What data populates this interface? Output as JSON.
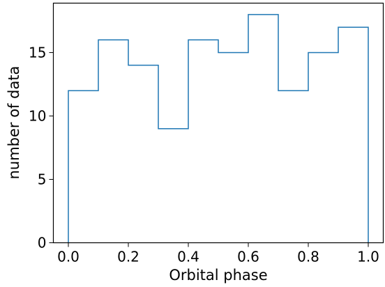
{
  "chart_data": {
    "type": "histogram",
    "style": "step",
    "bin_edges": [
      0.0,
      0.1,
      0.2,
      0.3,
      0.4,
      0.5,
      0.6,
      0.7,
      0.8,
      0.9,
      1.0
    ],
    "values": [
      12,
      16,
      14,
      9,
      16,
      15,
      18,
      12,
      15,
      17
    ],
    "xlabel": "Orbital phase",
    "ylabel": "number of data",
    "xlim": [
      -0.05,
      1.05
    ],
    "ylim": [
      0,
      18.9
    ],
    "xticks": [
      0.0,
      0.2,
      0.4,
      0.6,
      0.8,
      1.0
    ],
    "xtick_labels": [
      "0.0",
      "0.2",
      "0.4",
      "0.6",
      "0.8",
      "1.0"
    ],
    "yticks": [
      0,
      5,
      10,
      15
    ],
    "ytick_labels": [
      "0",
      "5",
      "10",
      "15"
    ],
    "grid": false,
    "line_color": "#1f77b4"
  }
}
